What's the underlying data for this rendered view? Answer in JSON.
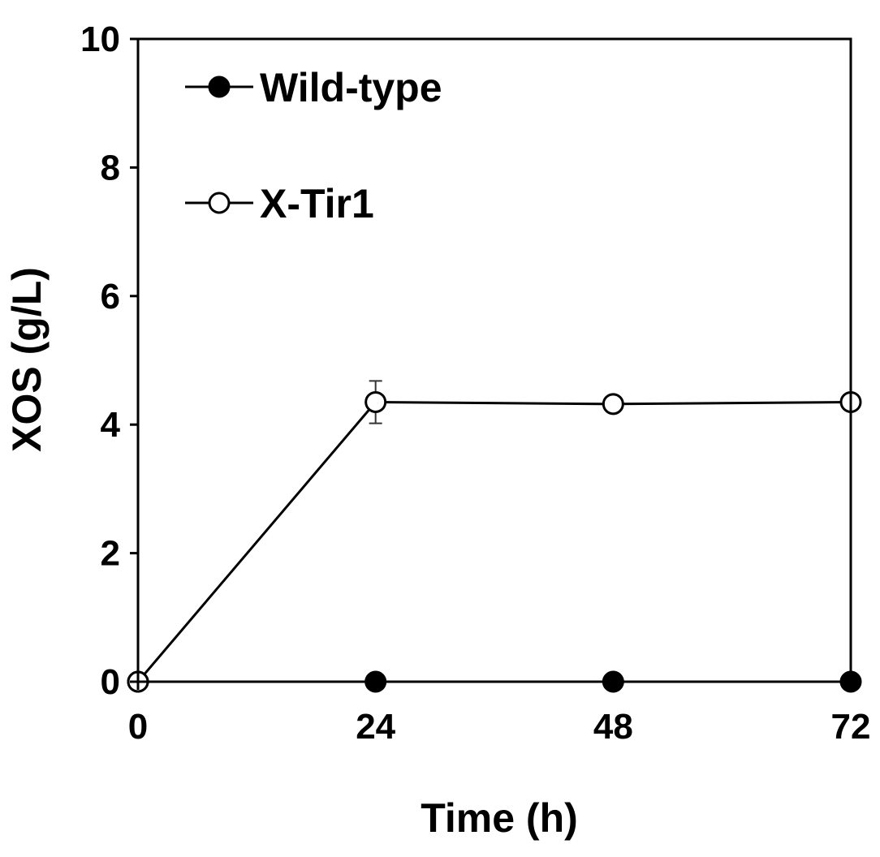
{
  "chart_data": {
    "type": "line",
    "title": "",
    "xlabel": "Time (h)",
    "ylabel": "XOS (g/L)",
    "x": [
      0,
      24,
      48,
      72
    ],
    "xlim": [
      0,
      72
    ],
    "ylim": [
      0,
      10
    ],
    "xticks": [
      "0",
      "24",
      "48",
      "72"
    ],
    "yticks": [
      "0",
      "2",
      "4",
      "6",
      "8",
      "10"
    ],
    "grid": false,
    "legend_position": "top-left",
    "series": [
      {
        "name": "Wild-type",
        "values": [
          0,
          0,
          0,
          0
        ],
        "errors": [
          0,
          0,
          0,
          0
        ],
        "marker": "filled-circle",
        "color": "#000000"
      },
      {
        "name": "X-Tir1",
        "values": [
          0,
          4.35,
          4.32,
          4.35
        ],
        "errors": [
          0,
          0.33,
          0.05,
          0.12
        ],
        "marker": "open-circle",
        "color": "#000000"
      }
    ]
  }
}
